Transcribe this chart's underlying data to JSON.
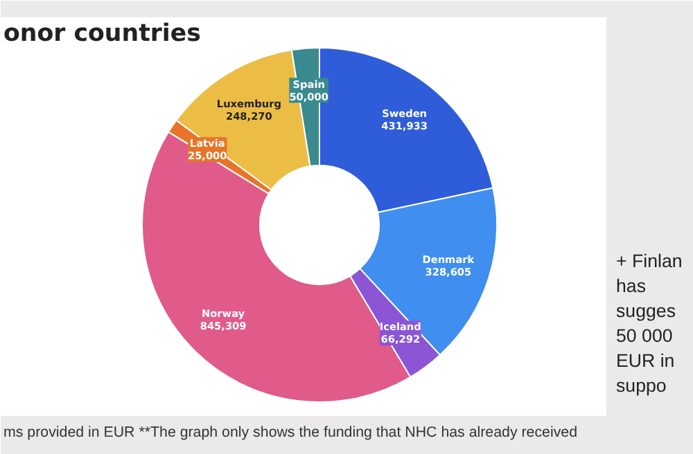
{
  "chart_data": {
    "type": "donut",
    "title": "onor countries",
    "categories": [
      "Sweden",
      "Denmark",
      "Iceland",
      "Norway",
      "Latvia",
      "Luxemburg",
      "Spain"
    ],
    "values": [
      431933,
      328605,
      66292,
      845309,
      25000,
      248270,
      50000
    ],
    "colors": [
      "#2f5cd9",
      "#3f8ef0",
      "#8b55d6",
      "#e05a8a",
      "#e8742a",
      "#ecbd45",
      "#3a8a8f"
    ],
    "value_labels": [
      "431,933",
      "328,605",
      "66,292",
      "845,309",
      "25,000",
      "248,270",
      "50,000"
    ],
    "legend": false,
    "annotations": [
      "ms provided in EUR **The graph only shows the funding that NHC has already received",
      "+ Finlan\n   has\n   sugges\n   50 000\n   EUR in\n   suppo"
    ]
  }
}
